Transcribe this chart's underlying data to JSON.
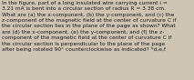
{
  "text": "In the figure, part of a long insulated wire carrying current i =\n3.21 mA is bent into a circular section of radius R = 3.38 cm.\nWhat are (a) the x-component, (b) the y-component, and (c) the\nz-component of the magnetic field at the center of curvature C if\nthe circular section lies in the plane of the page as shown? What\nare (d) the x-component, (e) the y-component, and (f) the z-\ncomponent of the magnetic field at the center of curvature C if\nthe circular section is perpendicular to the plane of the page\nafter being rotated 90° counterclockwise as indicated? *d,e,f",
  "fontsize": 4.2,
  "text_color": "#1a1a1a",
  "background_color": "#cec5b4",
  "font_family": "DejaVu Sans",
  "linespacing": 1.35
}
